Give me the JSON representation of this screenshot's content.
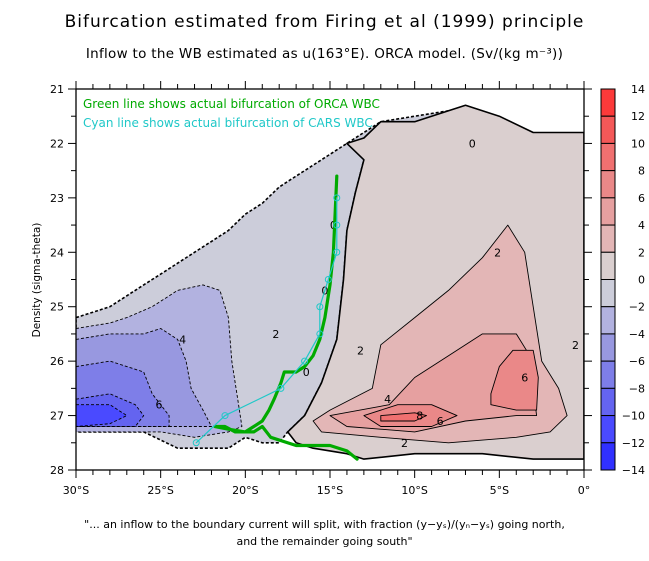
{
  "chart_data": {
    "type": "heatmap",
    "subtype": "filled-contour",
    "title": "Bifurcation estimated from Firing et al (1999) principle",
    "subtitle": "Inflow to the WB estimated as u(163°E). ORCA model. (Sv/(kg m⁻³))",
    "xlabel": "",
    "ylabel": "Density (sigma-theta)",
    "xlim": [
      -30,
      0
    ],
    "ylim": [
      21,
      28
    ],
    "y_inverted": true,
    "x_ticks": [
      {
        "value": -30,
        "label": "30°S"
      },
      {
        "value": -25,
        "label": "25°S"
      },
      {
        "value": -20,
        "label": "20°S"
      },
      {
        "value": -15,
        "label": "15°S"
      },
      {
        "value": -10,
        "label": "10°S"
      },
      {
        "value": -5,
        "label": "5°S"
      },
      {
        "value": 0,
        "label": "0°"
      }
    ],
    "x_minor_step": 1,
    "y_ticks": [
      {
        "value": 21,
        "label": "21"
      },
      {
        "value": 22,
        "label": "22"
      },
      {
        "value": 23,
        "label": "23"
      },
      {
        "value": 24,
        "label": "24"
      },
      {
        "value": 25,
        "label": "25"
      },
      {
        "value": 26,
        "label": "26"
      },
      {
        "value": 27,
        "label": "27"
      },
      {
        "value": 28,
        "label": "28"
      }
    ],
    "y_minor_step": 0.5,
    "grid": false,
    "colorbar": {
      "position": "right",
      "levels": [
        -14,
        -12,
        -10,
        -8,
        -6,
        -4,
        -2,
        0,
        2,
        4,
        6,
        8,
        10,
        12,
        14
      ],
      "tick_labels": [
        "-14",
        "-12",
        "-10",
        "-8",
        "-6",
        "-4",
        "-2",
        "0",
        "2",
        "4",
        "6",
        "8",
        "10",
        "12",
        "14"
      ],
      "colors": [
        "#3030ff",
        "#4a4aff",
        "#6464f0",
        "#7e7ee8",
        "#9898e0",
        "#b2b2e0",
        "#cccdda",
        "#dacfcf",
        "#e3b6b6",
        "#e6a0a0",
        "#ea8888",
        "#f07070",
        "#f45858",
        "#fc3a3a"
      ]
    },
    "regions": [
      {
        "name": "neg-2-band",
        "level_range": [
          -2,
          0
        ],
        "polygon": [
          [
            -30,
            25.2
          ],
          [
            -29,
            25.1
          ],
          [
            -28,
            25.0
          ],
          [
            -27,
            24.8
          ],
          [
            -26,
            24.6
          ],
          [
            -25,
            24.4
          ],
          [
            -24,
            24.2
          ],
          [
            -23,
            24.0
          ],
          [
            -22,
            23.8
          ],
          [
            -21,
            23.6
          ],
          [
            -20,
            23.3
          ],
          [
            -19,
            23.1
          ],
          [
            -18,
            22.8
          ],
          [
            -17,
            22.6
          ],
          [
            -16,
            22.4
          ],
          [
            -15,
            22.2
          ],
          [
            -14,
            22.0
          ],
          [
            -13,
            21.8
          ],
          [
            -12,
            21.6
          ],
          [
            -10,
            21.5
          ],
          [
            -8,
            21.4
          ],
          [
            -6.5,
            21.5
          ],
          [
            -6.5,
            21.95
          ],
          [
            -8,
            21.95
          ],
          [
            -10,
            22.0
          ],
          [
            -12,
            22.1
          ],
          [
            -13,
            22.3
          ],
          [
            -13.5,
            22.9
          ],
          [
            -14,
            23.6
          ],
          [
            -14.2,
            24.5
          ],
          [
            -14.6,
            25.6
          ],
          [
            -15.5,
            26.4
          ],
          [
            -16.5,
            27.0
          ],
          [
            -17.5,
            27.3
          ],
          [
            -18,
            27.5
          ],
          [
            -19,
            27.5
          ],
          [
            -20,
            27.4
          ],
          [
            -21,
            27.6
          ],
          [
            -24,
            27.6
          ],
          [
            -26,
            27.3
          ],
          [
            -30,
            27.3
          ]
        ]
      },
      {
        "name": "neg-4-band",
        "level_range": [
          -4,
          -2
        ],
        "polygon": [
          [
            -30,
            25.4
          ],
          [
            -28,
            25.3
          ],
          [
            -27,
            25.2
          ],
          [
            -25.5,
            25.0
          ],
          [
            -24,
            24.7
          ],
          [
            -22.5,
            24.6
          ],
          [
            -21.5,
            24.7
          ],
          [
            -21,
            25.2
          ],
          [
            -20.8,
            26.0
          ],
          [
            -20.5,
            26.6
          ],
          [
            -20.2,
            27.2
          ],
          [
            -21,
            27.3
          ],
          [
            -23,
            27.4
          ],
          [
            -25,
            27.3
          ],
          [
            -30,
            27.3
          ]
        ]
      },
      {
        "name": "neg-6-band",
        "level_range": [
          -6,
          -4
        ],
        "polygon": [
          [
            -30,
            25.6
          ],
          [
            -28,
            25.5
          ],
          [
            -26,
            25.5
          ],
          [
            -25,
            25.4
          ],
          [
            -24,
            25.6
          ],
          [
            -23.5,
            26.0
          ],
          [
            -23.2,
            26.5
          ],
          [
            -22.5,
            26.9
          ],
          [
            -22,
            27.2
          ],
          [
            -30,
            27.2
          ]
        ]
      },
      {
        "name": "neg-8-band",
        "level_range": [
          -8,
          -6
        ],
        "polygon": [
          [
            -30,
            26.1
          ],
          [
            -28,
            26.0
          ],
          [
            -26,
            26.2
          ],
          [
            -25.5,
            26.6
          ],
          [
            -24.5,
            27.0
          ],
          [
            -24.5,
            27.2
          ],
          [
            -30,
            27.2
          ]
        ]
      },
      {
        "name": "neg-10-band",
        "level_range": [
          -10,
          -8
        ],
        "polygon": [
          [
            -30,
            26.7
          ],
          [
            -28,
            26.6
          ],
          [
            -26.5,
            26.8
          ],
          [
            -26,
            27.0
          ],
          [
            -26.5,
            27.2
          ],
          [
            -30,
            27.2
          ]
        ]
      },
      {
        "name": "neg-12-band",
        "level_range": [
          -12,
          -10
        ],
        "polygon": [
          [
            -30,
            26.8
          ],
          [
            -28,
            26.8
          ],
          [
            -27,
            27.0
          ],
          [
            -28,
            27.15
          ],
          [
            -30,
            27.2
          ]
        ]
      },
      {
        "name": "pos-0-band",
        "level_range": [
          0,
          2
        ],
        "polygon": [
          [
            -14,
            22.0
          ],
          [
            -13,
            21.9
          ],
          [
            -12,
            21.6
          ],
          [
            -10,
            21.6
          ],
          [
            -8,
            21.4
          ],
          [
            -7,
            21.3
          ],
          [
            -5,
            21.5
          ],
          [
            -3,
            21.8
          ],
          [
            0,
            21.8
          ],
          [
            0,
            27.8
          ],
          [
            -3,
            27.8
          ],
          [
            -6,
            27.7
          ],
          [
            -10,
            27.7
          ],
          [
            -13,
            27.8
          ],
          [
            -14,
            27.7
          ],
          [
            -16,
            27.6
          ],
          [
            -17,
            27.5
          ],
          [
            -17.5,
            27.3
          ],
          [
            -16.5,
            27.0
          ],
          [
            -15.5,
            26.4
          ],
          [
            -14.6,
            25.6
          ],
          [
            -14.2,
            24.5
          ],
          [
            -14,
            23.6
          ],
          [
            -13.5,
            22.9
          ],
          [
            -13,
            22.3
          ]
        ]
      },
      {
        "name": "pos-2-band",
        "level_range": [
          2,
          4
        ],
        "polygon": [
          [
            -12.5,
            26.5
          ],
          [
            -12,
            25.7
          ],
          [
            -10,
            25.2
          ],
          [
            -8,
            24.7
          ],
          [
            -6,
            24.1
          ],
          [
            -4.5,
            23.5
          ],
          [
            -3.5,
            24.0
          ],
          [
            -3,
            25.0
          ],
          [
            -2.5,
            26.0
          ],
          [
            -1.5,
            26.5
          ],
          [
            -1,
            27.0
          ],
          [
            -2,
            27.3
          ],
          [
            -4,
            27.4
          ],
          [
            -8,
            27.5
          ],
          [
            -12,
            27.4
          ],
          [
            -15.5,
            27.3
          ],
          [
            -16,
            27.1
          ],
          [
            -15,
            26.9
          ]
        ]
      },
      {
        "name": "pos-4-band",
        "level_range": [
          4,
          6
        ],
        "polygon": [
          [
            -11.5,
            26.8
          ],
          [
            -10,
            26.3
          ],
          [
            -8,
            25.9
          ],
          [
            -6,
            25.5
          ],
          [
            -4,
            25.5
          ],
          [
            -3.2,
            25.9
          ],
          [
            -3,
            26.5
          ],
          [
            -2.8,
            27.0
          ],
          [
            -4,
            27.0
          ],
          [
            -7,
            27.1
          ],
          [
            -10,
            27.3
          ],
          [
            -14,
            27.2
          ],
          [
            -15,
            27.0
          ]
        ]
      },
      {
        "name": "pos-6-band",
        "level_range": [
          6,
          8
        ],
        "polygon": [
          [
            -5.5,
            26.6
          ],
          [
            -5,
            26.1
          ],
          [
            -4.2,
            25.8
          ],
          [
            -3,
            25.8
          ],
          [
            -2.7,
            26.3
          ],
          [
            -2.8,
            26.9
          ],
          [
            -4,
            26.9
          ],
          [
            -5.5,
            26.8
          ]
        ]
      },
      {
        "name": "pos-6-band-2",
        "level_range": [
          6,
          8
        ],
        "polygon": [
          [
            -13,
            27.0
          ],
          [
            -11,
            26.8
          ],
          [
            -9,
            26.8
          ],
          [
            -7.5,
            27.0
          ],
          [
            -9,
            27.2
          ],
          [
            -12,
            27.2
          ]
        ]
      },
      {
        "name": "pos-8-band",
        "level_range": [
          8,
          10
        ],
        "polygon": [
          [
            -12,
            27.0
          ],
          [
            -10,
            26.95
          ],
          [
            -9.3,
            27.0
          ],
          [
            -10,
            27.1
          ],
          [
            -12,
            27.1
          ]
        ]
      }
    ],
    "contour_labels": [
      {
        "text": "0",
        "x": -6.6,
        "y": 22.0
      },
      {
        "text": "0",
        "x": -14.8,
        "y": 23.5
      },
      {
        "text": "0",
        "x": -15.3,
        "y": 24.7
      },
      {
        "text": "0",
        "x": -16.4,
        "y": 26.2
      },
      {
        "text": "2",
        "x": -18.2,
        "y": 25.5
      },
      {
        "text": "2",
        "x": -13.2,
        "y": 25.8
      },
      {
        "text": "2",
        "x": -5.1,
        "y": 24.0
      },
      {
        "text": "2",
        "x": -0.5,
        "y": 25.7
      },
      {
        "text": "2",
        "x": -10.6,
        "y": 27.5
      },
      {
        "text": "4",
        "x": -23.7,
        "y": 25.6
      },
      {
        "text": "4",
        "x": -11.6,
        "y": 26.7
      },
      {
        "text": "6",
        "x": -25.1,
        "y": 26.8
      },
      {
        "text": "6",
        "x": -8.5,
        "y": 27.1
      },
      {
        "text": "6",
        "x": -3.5,
        "y": 26.3
      },
      {
        "text": "8",
        "x": -9.7,
        "y": 27.0
      }
    ],
    "series": [
      {
        "name": "Green line shows actual bifurcation of ORCA WBC",
        "color": "#00aa00",
        "x": [
          -14.6,
          -14.7,
          -14.8,
          -15.0,
          -15.3,
          -15.6,
          -16.0,
          -16.5,
          -17.0,
          -17.7,
          -17.9,
          -18.3,
          -18.6,
          -19.0,
          -19.5,
          -20.0,
          -20.6,
          -21.2,
          -21.8,
          -21.0,
          -20.0,
          -19.5,
          -19.0,
          -18.5,
          -17.0,
          -15.0,
          -14.0,
          -13.4
        ],
        "y": [
          22.6,
          23.3,
          24.0,
          24.6,
          25.2,
          25.6,
          25.9,
          26.1,
          26.2,
          26.2,
          26.4,
          26.7,
          26.9,
          27.1,
          27.2,
          27.3,
          27.3,
          27.2,
          27.2,
          27.25,
          27.3,
          27.3,
          27.2,
          27.4,
          27.55,
          27.55,
          27.65,
          27.8
        ]
      },
      {
        "name": "Cyan line shows actual bifurcation of CARS WBC",
        "color": "#20c8c8",
        "x": [
          -14.6,
          -14.6,
          -14.6,
          -15.1,
          -15.6,
          -15.6,
          -16.5,
          -17.9,
          -21.2,
          -22.9
        ],
        "y": [
          23.0,
          23.5,
          24.0,
          24.5,
          25.0,
          25.5,
          26.0,
          26.5,
          27.0,
          27.5
        ],
        "markers": "circle"
      }
    ],
    "legend": {
      "placement": "top-left",
      "entries": [
        {
          "text": "Green line shows actual bifurcation of ORCA WBC",
          "color": "#00aa00"
        },
        {
          "text": "Cyan line shows actual bifurcation of CARS WBC",
          "color": "#20c8c8"
        }
      ]
    },
    "caption": [
      "\"... an inflow to the boundary current will split, with fraction (y−yₛ)/(yₙ−yₛ) going north,",
      "and the remainder going south\""
    ]
  }
}
